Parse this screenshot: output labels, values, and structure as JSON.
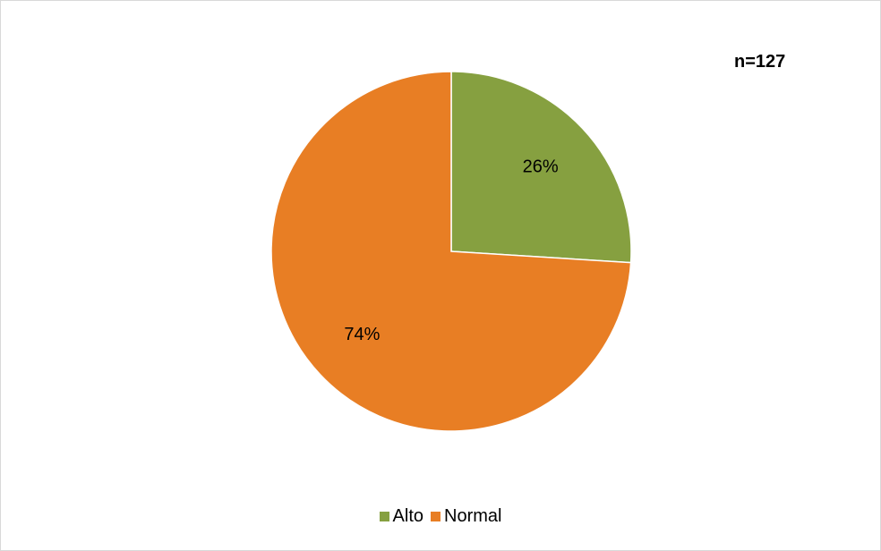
{
  "chart_data": {
    "type": "pie",
    "title": "",
    "annotation": "n=127",
    "categories": [
      "Alto",
      "Normal"
    ],
    "values": [
      26,
      74
    ],
    "data_labels": [
      "26%",
      "74%"
    ],
    "colors": [
      "#86a040",
      "#e87e24"
    ],
    "legend": "bottom"
  }
}
